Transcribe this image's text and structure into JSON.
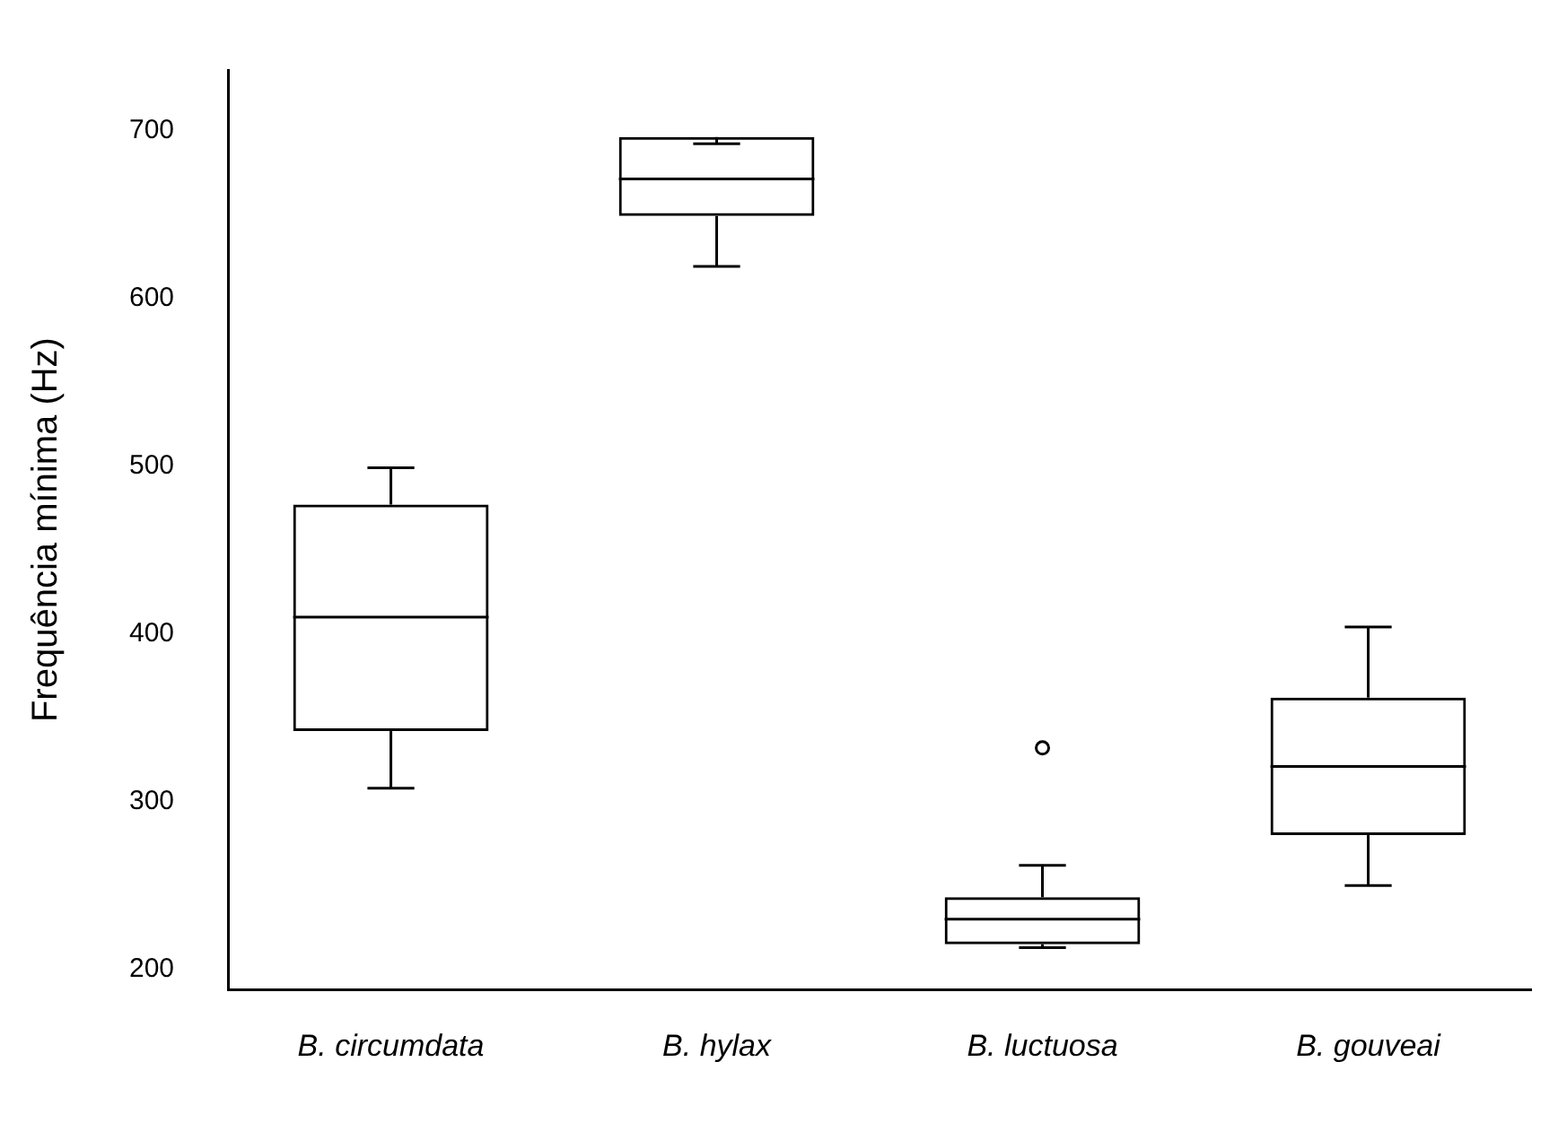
{
  "chart_data": {
    "type": "box",
    "ylabel": "Frequência mínima (Hz)",
    "categories": [
      "B. circumdata",
      "B. hylax",
      "B. luctuosa",
      "B. gouveai"
    ],
    "boxes": [
      {
        "low": 308,
        "q1": 342,
        "median": 410,
        "q3": 477,
        "high": 499
      },
      {
        "low": 619,
        "q1": 649,
        "median": 671,
        "q3": 696,
        "high": 692
      },
      {
        "low": 213,
        "q1": 215,
        "median": 230,
        "q3": 243,
        "high": 262,
        "outliers": [
          332
        ]
      },
      {
        "low": 250,
        "q1": 280,
        "median": 321,
        "q3": 362,
        "high": 404
      }
    ],
    "color": "#000000",
    "ylim": [
      188,
      736
    ],
    "yticks": [
      200,
      300,
      400,
      500,
      600,
      700
    ],
    "legend": false
  }
}
